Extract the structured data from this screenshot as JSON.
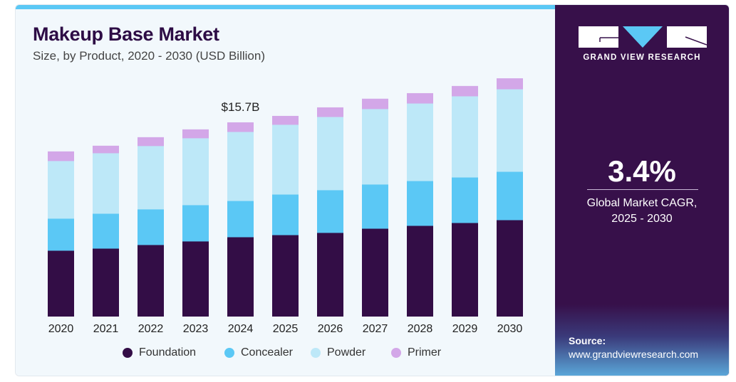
{
  "chart_data": {
    "type": "bar",
    "stacked": true,
    "title": "Makeup Base Market",
    "subtitle": "Size, by Product, 2020 - 2030 (USD Billion)",
    "xlabel": "",
    "ylabel": "",
    "ylim": [
      0,
      19
    ],
    "grid": false,
    "legend_position": "bottom",
    "categories": [
      "2020",
      "2021",
      "2022",
      "2023",
      "2024",
      "2025",
      "2026",
      "2027",
      "2028",
      "2029",
      "2030"
    ],
    "series": [
      {
        "name": "Foundation",
        "color": "#330d46",
        "values": [
          5.35,
          5.52,
          5.81,
          6.1,
          6.44,
          6.61,
          6.79,
          7.13,
          7.36,
          7.59,
          7.82
        ]
      },
      {
        "name": "Concealer",
        "color": "#5bc8f5",
        "values": [
          2.59,
          2.82,
          2.88,
          2.93,
          2.93,
          3.28,
          3.45,
          3.57,
          3.62,
          3.68,
          3.91
        ]
      },
      {
        "name": "Powder",
        "color": "#bde8f8",
        "values": [
          4.66,
          4.89,
          5.12,
          5.41,
          5.58,
          5.64,
          5.92,
          6.1,
          6.27,
          6.56,
          6.67
        ]
      },
      {
        "name": "Primer",
        "color": "#d3a7e8",
        "values": [
          0.75,
          0.58,
          0.69,
          0.69,
          0.75,
          0.69,
          0.75,
          0.81,
          0.81,
          0.81,
          0.86
        ]
      }
    ],
    "annotations": [
      {
        "category": "2024",
        "text": "$15.7B"
      }
    ]
  },
  "sidebar": {
    "brand": "GRAND VIEW RESEARCH",
    "cagr_value": "3.4%",
    "cagr_label_line1": "Global Market CAGR,",
    "cagr_label_line2": "2025 - 2030",
    "source_label": "Source:",
    "source_url": "www.grandviewresearch.com"
  },
  "colors": {
    "accent": "#5bc8f5",
    "panel": "#37104a",
    "title": "#2d0c45"
  }
}
